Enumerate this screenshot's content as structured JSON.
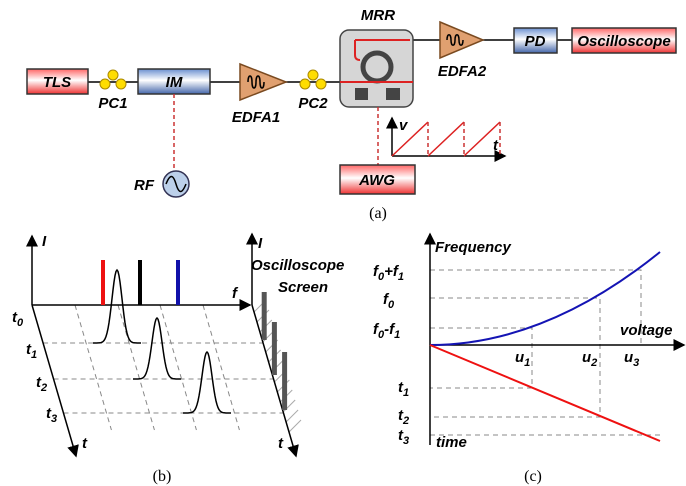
{
  "panel_a": {
    "mrr": "MRR",
    "tls": "TLS",
    "pc1": "PC1",
    "im": "IM",
    "edfa1": "EDFA1",
    "pc2": "PC2",
    "edfa2": "EDFA2",
    "pd": "PD",
    "oscilloscope": "Oscilloscope",
    "rf": "RF",
    "awg": "AWG",
    "v_axis": "v",
    "t_axis": "t",
    "caption": "(a)"
  },
  "panel_b": {
    "i_left": "I",
    "i_right": "I",
    "f_axis": "f",
    "screen_label": [
      "Oscilloscope",
      "Screen"
    ],
    "t_left": "t",
    "t_right": "t",
    "time_labels": [
      [
        "t",
        "0"
      ],
      [
        "t",
        "1"
      ],
      [
        "t",
        "2"
      ],
      [
        "t",
        "3"
      ]
    ],
    "caption": "(b)"
  },
  "panel_c": {
    "y_axis": "Frequency",
    "x_axis": "voltage",
    "time_axis": "time",
    "freq_labels": [
      [
        "f",
        "0",
        "+f",
        "1"
      ],
      [
        "f",
        "0"
      ],
      [
        "f",
        "0",
        "-f",
        "1"
      ]
    ],
    "u_labels": [
      [
        "u",
        "1"
      ],
      [
        "u",
        "2"
      ],
      [
        "u",
        "3"
      ]
    ],
    "t_labels": [
      [
        "t",
        "1"
      ],
      [
        "t",
        "2"
      ],
      [
        "t",
        "3"
      ]
    ],
    "caption": "(c)"
  }
}
